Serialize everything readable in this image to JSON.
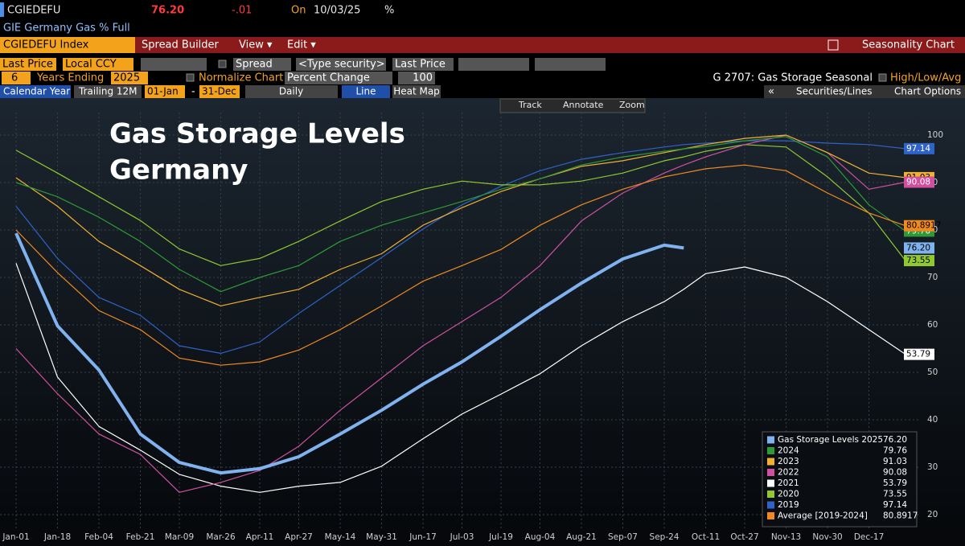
{
  "ui": {
    "ticker": "CGIEDEFU",
    "price": "76.20",
    "change": "-.01",
    "on": "On",
    "date": "10/03/25",
    "unit": "%",
    "description": "GIE Germany Gas % Full",
    "menu": [
      "CGIEDEFU Index",
      "Spread Builder",
      "View ▾",
      "Edit ▾"
    ],
    "seasonality": "Seasonality Chart",
    "row1": [
      "Last Price",
      "Local CCY",
      "Spread",
      "<Type security>",
      "Last Price"
    ],
    "row2": [
      "6",
      "Years Ending",
      "2025",
      "Normalize Chart",
      "Percent Change",
      "100",
      "G 2707: Gas Storage Seasonal",
      "High/Low/Avg"
    ],
    "row3": [
      "Calendar Year",
      "Trailing 12M",
      "01-Jan",
      "-",
      "31-Dec",
      "Daily",
      "Line",
      "Heat Map",
      "«",
      "Securities/Lines",
      "Chart Options"
    ],
    "tools": [
      "Track",
      "Annotate",
      "Zoom"
    ]
  },
  "chart_data": {
    "type": "line",
    "title": "Gas Storage Levels",
    "subtitle": "Germany",
    "x": [
      0,
      17,
      34,
      51,
      67,
      84,
      100,
      116,
      133,
      150,
      167,
      183,
      199,
      215,
      232,
      249,
      266,
      274,
      283,
      299,
      316,
      333,
      350,
      365
    ],
    "xlim": [
      0,
      365
    ],
    "xticks": [
      {
        "value": 0,
        "label": "Jan-01"
      },
      {
        "value": 17,
        "label": "Jan-18"
      },
      {
        "value": 34,
        "label": "Feb-04"
      },
      {
        "value": 51,
        "label": "Feb-21"
      },
      {
        "value": 67,
        "label": "Mar-09"
      },
      {
        "value": 84,
        "label": "Mar-26"
      },
      {
        "value": 100,
        "label": "Apr-11"
      },
      {
        "value": 116,
        "label": "Apr-27"
      },
      {
        "value": 133,
        "label": "May-14"
      },
      {
        "value": 150,
        "label": "May-31"
      },
      {
        "value": 167,
        "label": "Jun-17"
      },
      {
        "value": 183,
        "label": "Jul-03"
      },
      {
        "value": 199,
        "label": "Jul-19"
      },
      {
        "value": 215,
        "label": "Aug-04"
      },
      {
        "value": 232,
        "label": "Aug-21"
      },
      {
        "value": 249,
        "label": "Sep-07"
      },
      {
        "value": 266,
        "label": "Sep-24"
      },
      {
        "value": 283,
        "label": "Oct-11"
      },
      {
        "value": 299,
        "label": "Oct-27"
      },
      {
        "value": 316,
        "label": "Nov-13"
      },
      {
        "value": 333,
        "label": "Nov-30"
      },
      {
        "value": 350,
        "label": "Dec-17"
      }
    ],
    "ylim": [
      17,
      105
    ],
    "yticks": [
      20,
      30,
      40,
      50,
      60,
      70,
      80,
      90,
      100
    ],
    "grid": true,
    "legend": "lower right",
    "series": [
      {
        "name": "Gas Storage Levels 2025",
        "color": "#7fb2ee",
        "values": [
          79.3,
          59.8,
          50.5,
          37,
          31,
          28.8,
          29.7,
          32.2,
          37,
          42,
          47.5,
          52.2,
          57.6,
          63.2,
          68.8,
          73.9,
          76.8,
          76.2,
          null,
          null,
          null,
          null,
          null,
          null
        ],
        "value_labels": [
          null,
          null,
          null,
          null,
          null,
          null,
          null,
          null,
          null,
          null,
          null,
          null,
          null,
          null,
          null,
          null,
          null,
          "76.20",
          null,
          null,
          null,
          null,
          null,
          null
        ]
      },
      {
        "name": "2024",
        "color": "#2e9a36",
        "values": [
          90,
          87,
          82.7,
          77.6,
          71.7,
          67,
          70,
          72.5,
          77.6,
          81,
          83.6,
          86,
          88.6,
          90.8,
          93.7,
          95.4,
          96.6,
          97.1,
          97.6,
          98.8,
          99.7,
          95.4,
          85.3,
          79.76
        ]
      },
      {
        "name": "2023",
        "color": "#f0b030",
        "values": [
          91,
          85,
          77.6,
          72.5,
          67.5,
          64,
          65.8,
          67.5,
          71.7,
          75,
          81,
          84.7,
          88.1,
          90.8,
          93.4,
          94.6,
          96.3,
          97.1,
          98,
          99.3,
          100,
          96.3,
          92,
          91.03
        ]
      },
      {
        "name": "2022",
        "color": "#d050a0",
        "values": [
          55,
          45.5,
          37,
          32.7,
          24.7,
          26.8,
          29.3,
          34.4,
          42,
          48.8,
          55.6,
          60.7,
          65.8,
          72.5,
          81.9,
          87.8,
          92,
          93.7,
          95.4,
          98,
          100,
          96.3,
          88.6,
          90.08
        ]
      },
      {
        "name": "2021",
        "color": "#ffffff",
        "values": [
          73,
          49,
          38.6,
          33.6,
          28.5,
          26,
          24.7,
          26,
          26.8,
          30.2,
          36,
          41.2,
          45.4,
          49.7,
          55.6,
          60.7,
          64.9,
          67.5,
          70.8,
          72.2,
          70,
          64.9,
          59,
          53.79
        ]
      },
      {
        "name": "2020",
        "color": "#90c830",
        "values": [
          96.8,
          92,
          87,
          82,
          76,
          72.5,
          74,
          77.6,
          81.9,
          86,
          88.6,
          90.3,
          89.5,
          89.5,
          90.3,
          92,
          94.6,
          95.4,
          96.6,
          98,
          97.5,
          91.2,
          83.6,
          73.55
        ]
      },
      {
        "name": "2019",
        "color": "#2f63c8",
        "values": [
          85,
          74,
          65.8,
          62,
          55.6,
          54,
          56.4,
          62.4,
          68.3,
          74.2,
          80.2,
          85.3,
          89.2,
          92.5,
          94.9,
          96.3,
          97.5,
          98,
          98.3,
          98.8,
          98.8,
          98.3,
          98,
          97.14
        ]
      },
      {
        "name": "Average  [2019-2024]",
        "color": "#f08a20",
        "values": [
          80,
          71,
          63,
          59,
          53,
          51.5,
          52.2,
          54.7,
          59,
          64,
          69.2,
          72.5,
          75.9,
          81,
          85.3,
          88.6,
          91.2,
          92,
          92.9,
          93.7,
          92.5,
          87.8,
          83.6,
          80.8917
        ]
      }
    ]
  }
}
